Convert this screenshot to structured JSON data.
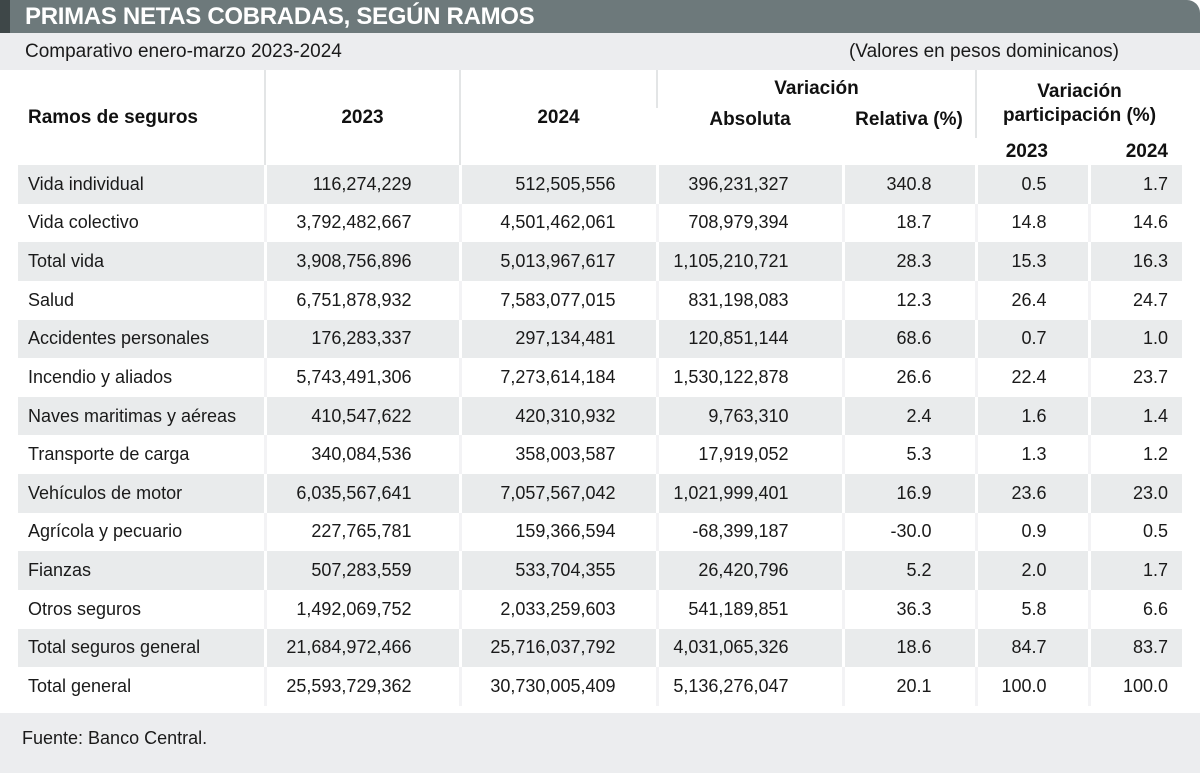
{
  "title": "PRIMAS NETAS COBRADAS, SEGÚN RAMOS",
  "subtitle_left": "Comparativo enero-marzo 2023-2024",
  "subtitle_right": "(Valores en pesos dominicanos)",
  "source": "Fuente: Banco Central.",
  "colors": {
    "title_bar": "#6d797b",
    "title_accent": "#3e4748",
    "strip_background": "#ecedef",
    "row_alt_background": "#e9ebec",
    "title_text": "#ffffff",
    "body_text": "#1a1a1a"
  },
  "chart_data": {
    "type": "table",
    "title": "PRIMAS NETAS COBRADAS, SEGÚN RAMOS",
    "subtitle": "Comparativo enero-marzo 2023-2024",
    "units": "(Valores en pesos dominicanos)",
    "source": "Fuente: Banco Central.",
    "header": {
      "col_ramos": "Ramos de seguros",
      "col_2023": "2023",
      "col_2024": "2024",
      "group_variacion": "Variación",
      "col_absoluta": "Absoluta",
      "col_relativa": "Relativa (%)",
      "group_participacion": "Variación participación (%)",
      "col_part_2023": "2023",
      "col_part_2024": "2024"
    },
    "columns": [
      "Ramos de seguros",
      "2023",
      "2024",
      "Variación Absoluta",
      "Variación Relativa (%)",
      "Variación participación (%) 2023",
      "Variación participación (%) 2024"
    ],
    "rows": [
      [
        "Vida individual",
        "116,274,229",
        "512,505,556",
        "396,231,327",
        "340.8",
        "0.5",
        "1.7"
      ],
      [
        "Vida colectivo",
        "3,792,482,667",
        "4,501,462,061",
        "708,979,394",
        "18.7",
        "14.8",
        "14.6"
      ],
      [
        "Total vida",
        "3,908,756,896",
        "5,013,967,617",
        "1,105,210,721",
        "28.3",
        "15.3",
        "16.3"
      ],
      [
        "Salud",
        "6,751,878,932",
        "7,583,077,015",
        "831,198,083",
        "12.3",
        "26.4",
        "24.7"
      ],
      [
        "Accidentes personales",
        "176,283,337",
        "297,134,481",
        "120,851,144",
        "68.6",
        "0.7",
        "1.0"
      ],
      [
        "Incendio y aliados",
        "5,743,491,306",
        "7,273,614,184",
        "1,530,122,878",
        "26.6",
        "22.4",
        "23.7"
      ],
      [
        "Naves maritimas y aéreas",
        "410,547,622",
        "420,310,932",
        "9,763,310",
        "2.4",
        "1.6",
        "1.4"
      ],
      [
        "Transporte de carga",
        "340,084,536",
        "358,003,587",
        "17,919,052",
        "5.3",
        "1.3",
        "1.2"
      ],
      [
        "Vehículos de motor",
        "6,035,567,641",
        "7,057,567,042",
        "1,021,999,401",
        "16.9",
        "23.6",
        "23.0"
      ],
      [
        "Agrícola y pecuario",
        "227,765,781",
        "159,366,594",
        "-68,399,187",
        "-30.0",
        "0.9",
        "0.5"
      ],
      [
        "Fianzas",
        "507,283,559",
        "533,704,355",
        "26,420,796",
        "5.2",
        "2.0",
        "1.7"
      ],
      [
        "Otros seguros",
        "1,492,069,752",
        "2,033,259,603",
        "541,189,851",
        "36.3",
        "5.8",
        "6.6"
      ],
      [
        "Total seguros general",
        "21,684,972,466",
        "25,716,037,792",
        "4,031,065,326",
        "18.6",
        "84.7",
        "83.7"
      ],
      [
        "Total general",
        "25,593,729,362",
        "30,730,005,409",
        "5,136,276,047",
        "20.1",
        "100.0",
        "100.0"
      ]
    ]
  }
}
